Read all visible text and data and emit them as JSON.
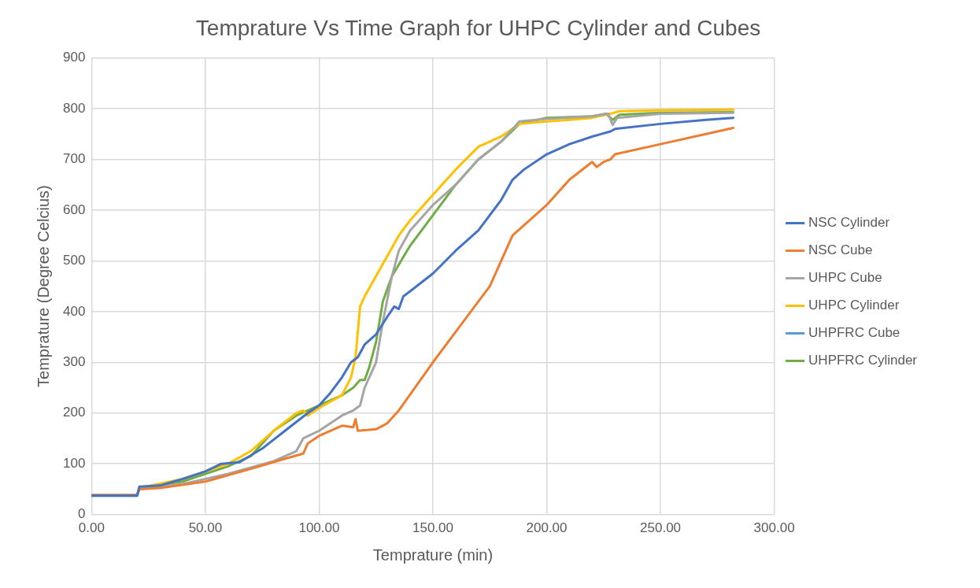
{
  "chart_data": {
    "type": "line",
    "title": "Temprature Vs Time Graph for UHPC Cylinder and Cubes",
    "xlabel": "Temprature (min)",
    "ylabel": "Temprature (Degree Celcius)",
    "xlim": [
      0,
      300
    ],
    "xticks": [
      {
        "value": 0,
        "label": "0.00"
      },
      {
        "value": 50,
        "label": "50.00"
      },
      {
        "value": 100,
        "label": "100.00"
      },
      {
        "value": 150,
        "label": "150.00"
      },
      {
        "value": 200,
        "label": "200.00"
      },
      {
        "value": 250,
        "label": "250.00"
      },
      {
        "value": 300,
        "label": "300.00"
      }
    ],
    "ylim": [
      0,
      900
    ],
    "yticks": [
      0,
      100,
      200,
      300,
      400,
      500,
      600,
      700,
      800,
      900
    ],
    "grid": true,
    "legend": "right",
    "marker": "none",
    "series": [
      {
        "name": "NSC Cylinder",
        "color": "#4472c4",
        "x": [
          0,
          20,
          21,
          30,
          40,
          50,
          57,
          65,
          75,
          85,
          95,
          100,
          105,
          110,
          114,
          117,
          120,
          125,
          130,
          133,
          135,
          137,
          140,
          150,
          160,
          170,
          180,
          185,
          190,
          200,
          210,
          220,
          228,
          230,
          250,
          270,
          282
        ],
        "values": [
          37,
          37,
          55,
          57,
          70,
          85,
          100,
          103,
          130,
          165,
          200,
          215,
          240,
          270,
          300,
          310,
          335,
          355,
          390,
          410,
          405,
          430,
          440,
          475,
          520,
          560,
          620,
          660,
          680,
          710,
          730,
          745,
          755,
          760,
          770,
          778,
          782
        ]
      },
      {
        "name": "NSC Cube",
        "color": "#ed7d31",
        "x": [
          0,
          20,
          21,
          30,
          50,
          70,
          85,
          93,
          95,
          100,
          110,
          115,
          116,
          117,
          125,
          130,
          135,
          150,
          160,
          170,
          175,
          180,
          185,
          195,
          200,
          210,
          220,
          222,
          225,
          228,
          230,
          250,
          270,
          282
        ],
        "values": [
          38,
          38,
          50,
          52,
          65,
          90,
          110,
          120,
          140,
          155,
          175,
          172,
          188,
          165,
          168,
          180,
          205,
          300,
          360,
          420,
          450,
          500,
          550,
          590,
          610,
          660,
          695,
          685,
          695,
          700,
          710,
          730,
          750,
          762
        ]
      },
      {
        "name": "UHPC Cube",
        "color": "#a5a5a5",
        "x": [
          0,
          20,
          21,
          40,
          60,
          80,
          90,
          93,
          100,
          110,
          115,
          118,
          120,
          125,
          128,
          132,
          135,
          140,
          150,
          160,
          170,
          180,
          188,
          200,
          220,
          227,
          229,
          231,
          250,
          282
        ],
        "values": [
          38,
          38,
          50,
          60,
          80,
          105,
          125,
          150,
          165,
          195,
          205,
          215,
          250,
          300,
          380,
          470,
          520,
          560,
          610,
          650,
          700,
          735,
          775,
          780,
          785,
          790,
          768,
          782,
          790,
          792
        ]
      },
      {
        "name": "UHPC Cylinder",
        "color": "#ffc000",
        "x": [
          0,
          20,
          21,
          40,
          60,
          70,
          80,
          90,
          93,
          95,
          100,
          110,
          114,
          116,
          118,
          120,
          125,
          130,
          135,
          140,
          150,
          160,
          170,
          175,
          180,
          188,
          200,
          210,
          220,
          228,
          232,
          250,
          282
        ],
        "values": [
          38,
          38,
          52,
          70,
          100,
          125,
          165,
          200,
          205,
          195,
          210,
          235,
          270,
          310,
          410,
          430,
          470,
          510,
          550,
          580,
          630,
          680,
          725,
          735,
          745,
          770,
          775,
          778,
          782,
          790,
          795,
          797,
          798
        ]
      },
      {
        "name": "UHPFRC Cube",
        "color": "#5b9bd5"
      },
      {
        "name": "UHPFRC Cylinder",
        "color": "#70ad47",
        "x": [
          0,
          20,
          21,
          40,
          60,
          70,
          80,
          90,
          100,
          110,
          115,
          118,
          120,
          122,
          125,
          128,
          132,
          140,
          150,
          160,
          170,
          180,
          188,
          200,
          220,
          226,
          229,
          232,
          250,
          282
        ],
        "values": [
          37,
          37,
          52,
          65,
          95,
          115,
          165,
          195,
          215,
          235,
          250,
          265,
          265,
          290,
          340,
          420,
          470,
          530,
          590,
          650,
          700,
          735,
          770,
          782,
          785,
          790,
          778,
          788,
          792,
          793
        ]
      }
    ]
  }
}
